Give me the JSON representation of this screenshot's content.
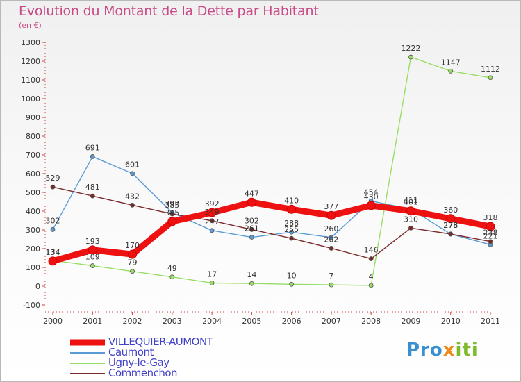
{
  "title": "Evolution du Montant de la Dette par Habitant",
  "subtitle": "(en €)",
  "logo": {
    "text": "Proxiti"
  },
  "chart_data": {
    "type": "line",
    "title": "Evolution du Montant de la Dette par Habitant",
    "subtitle": "(en €)",
    "ylim": [
      -100,
      1300
    ],
    "ytick_step": 100,
    "categories": [
      "2000",
      "2001",
      "2002",
      "2003",
      "2004",
      "2005",
      "2006",
      "2007",
      "2008",
      "2009",
      "2010",
      "2011"
    ],
    "legend_position": "bottom-left",
    "grid": false,
    "series": [
      {
        "name": "VILLEQUIER-AUMONT",
        "color": "#ee1111",
        "thick": true,
        "values": [
          134,
          193,
          170,
          345,
          392,
          447,
          410,
          377,
          430,
          401,
          360,
          318
        ]
      },
      {
        "name": "Caumont",
        "color": "#5b9bd5",
        "thick": false,
        "values": [
          302,
          691,
          601,
          392,
          297,
          261,
          288,
          260,
          454,
          411,
          278,
          221
        ]
      },
      {
        "name": "Ugny-le-Gay",
        "color": "#99dd66",
        "thick": false,
        "values": [
          137,
          109,
          79,
          49,
          17,
          14,
          10,
          7,
          4,
          1222,
          1147,
          1112
        ]
      },
      {
        "name": "Commenchon",
        "color": "#7a2a2a",
        "thick": false,
        "values": [
          529,
          481,
          432,
          385,
          349,
          302,
          255,
          202,
          146,
          310,
          278,
          238
        ]
      }
    ]
  }
}
